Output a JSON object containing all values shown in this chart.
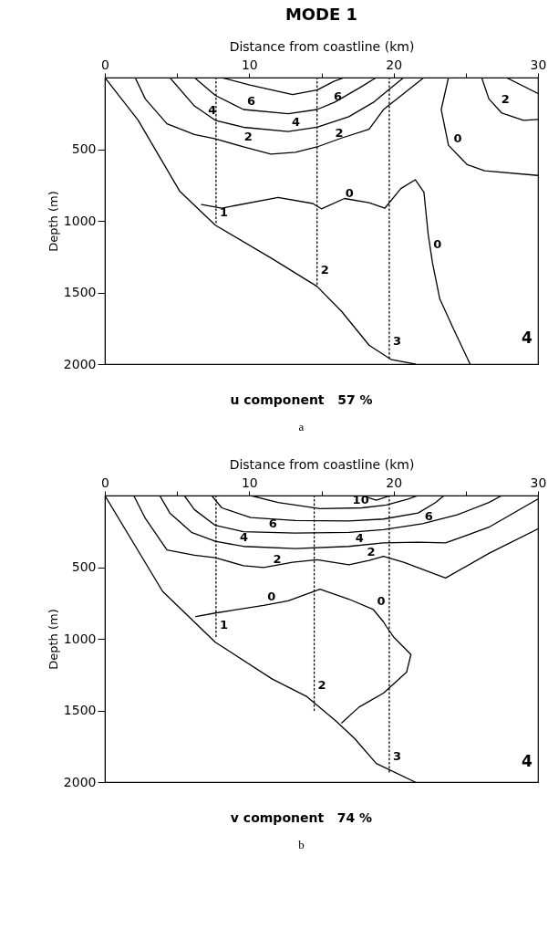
{
  "chart_data": [
    {
      "type": "line",
      "title": "MODE 1",
      "xlabel": "Distance from coastline (km)",
      "ylabel": "Depth (m)",
      "xlim": [
        0,
        30
      ],
      "xticks": [
        0,
        {
          "value": 5,
          "label": null
        },
        10,
        {
          "value": 15,
          "label": null
        },
        20,
        {
          "value": 25,
          "label": null
        },
        30
      ],
      "ylim": [
        2000,
        0
      ],
      "yticks": [
        500,
        1000,
        1500,
        2000
      ],
      "series": [
        {
          "color": "#000000",
          "x": [
            0,
            2.3,
            5.2,
            7.65,
            11.5,
            14.7,
            16.4,
            18.3,
            19.8,
            21.5
          ],
          "values": [
            0,
            297,
            795,
            1030,
            1259,
            1458,
            1632,
            1868,
            1967,
            2000
          ]
        },
        {
          "color": "#000000",
          "x": [
            8.1,
            10.1,
            13.0,
            14.7,
            15.9,
            16.6
          ],
          "values": [
            0,
            54,
            119,
            87,
            25,
            0
          ]
        },
        {
          "color": "#000000",
          "x": [
            6.2,
            7.65,
            9.6,
            12.7,
            14.7,
            15.9,
            17.6,
            18.8
          ],
          "values": [
            0,
            124,
            223,
            253,
            223,
            173,
            74,
            0
          ]
        },
        {
          "color": "#000000",
          "x": [
            4.5,
            6.2,
            7.65,
            9.6,
            12.7,
            14.7,
            16.9,
            18.6,
            19.8,
            20.7
          ],
          "values": [
            0,
            198,
            298,
            347,
            377,
            347,
            273,
            173,
            74,
            0
          ]
        },
        {
          "color": "#000000",
          "x": [
            2.1,
            2.8,
            4.3,
            6.2,
            7.65,
            9.6,
            11.5,
            13.2,
            14.7,
            16.4,
            18.3,
            19.3,
            20.7,
            22.1
          ],
          "values": [
            0,
            149,
            322,
            397,
            427,
            484,
            534,
            521,
            484,
            422,
            360,
            223,
            111,
            0
          ]
        },
        {
          "color": "#000000",
          "x": [
            23.8,
            23.3,
            23.8,
            25.1,
            26.3,
            30
          ],
          "values": [
            0,
            223,
            472,
            608,
            650,
            683
          ]
        },
        {
          "color": "#000000",
          "x": [
            26.1,
            26.6,
            27.5,
            29.0,
            30
          ],
          "values": [
            0,
            149,
            248,
            298,
            292
          ]
        },
        {
          "color": "#000000",
          "x": [
            27.8,
            30
          ],
          "values": [
            0,
            111
          ]
        },
        {
          "color": "#000000",
          "x": [
            6.7,
            8.1,
            12.0,
            14.4,
            15.0,
            16.6,
            18.3,
            19.4,
            20.5,
            21.5,
            22.1,
            22.4,
            22.7,
            23.2,
            24.1,
            25.3
          ],
          "values": [
            886,
            911,
            837,
            879,
            916,
            844,
            874,
            911,
            775,
            713,
            800,
            1098,
            1297,
            1545,
            1744,
            2000
          ]
        },
        {
          "color": "#000000",
          "line_style": "dotted",
          "x": [
            7.7,
            7.7
          ],
          "values": [
            0,
            1030
          ]
        },
        {
          "color": "#000000",
          "line_style": "dotted",
          "x": [
            14.7,
            14.7
          ],
          "values": [
            0,
            1458
          ]
        },
        {
          "color": "#000000",
          "line_style": "dotted",
          "x": [
            19.7,
            19.7
          ],
          "values": [
            0,
            1960
          ]
        }
      ],
      "annotations": [
        {
          "text": "6",
          "x": 9.6,
          "y": 223
        },
        {
          "text": "6",
          "x": 15.6,
          "y": 190
        },
        {
          "text": "4",
          "x": 6.9,
          "y": 285
        },
        {
          "text": "4",
          "x": 12.7,
          "y": 370
        },
        {
          "text": "2",
          "x": 9.4,
          "y": 472
        },
        {
          "text": "2",
          "x": 15.7,
          "y": 447
        },
        {
          "text": "0",
          "x": 23.9,
          "y": 485
        },
        {
          "text": "2",
          "x": 27.2,
          "y": 211
        },
        {
          "text": "0",
          "x": 16.4,
          "y": 869
        },
        {
          "text": "0",
          "x": 22.5,
          "y": 1222
        },
        {
          "text": "1",
          "x": 7.7,
          "y": 1000
        },
        {
          "text": "2",
          "x": 14.7,
          "y": 1400
        },
        {
          "text": "3",
          "x": 19.7,
          "y": 1900
        },
        "4",
        "u component   57 %",
        "a"
      ]
    },
    {
      "type": "line",
      "xlabel": "Distance from coastline (km)",
      "ylabel": "Depth (m)",
      "xlim": [
        0,
        30
      ],
      "xticks": [
        0,
        {
          "value": 5,
          "label": null
        },
        10,
        {
          "value": 15,
          "label": null
        },
        20,
        {
          "value": 25,
          "label": null
        },
        30
      ],
      "ylim": [
        2000,
        0
      ],
      "yticks": [
        500,
        1000,
        1500,
        2000
      ],
      "series": [
        {
          "color": "#000000",
          "x": [
            0,
            4.0,
            7.65,
            11.6,
            14.0,
            16.0,
            17.3,
            18.8,
            21.5
          ],
          "values": [
            0,
            669,
            1024,
            1281,
            1404,
            1573,
            1696,
            1870,
            2000
          ]
        },
        {
          "color": "#000000",
          "x": [
            10.1,
            12.0,
            14.9,
            17.8,
            19.5,
            21.0,
            21.7
          ],
          "values": [
            0,
            49,
            91,
            86,
            66,
            24,
            0
          ]
        },
        {
          "color": "#000000",
          "x": [
            17.8,
            18.8,
            19.8
          ],
          "values": [
            0,
            32,
            0
          ]
        },
        {
          "color": "#000000",
          "x": [
            7.4,
            8.1,
            10.1,
            13.2,
            16.9,
            19.3,
            21.7,
            22.9,
            23.5
          ],
          "values": [
            0,
            86,
            154,
            174,
            178,
            164,
            122,
            49,
            0
          ]
        },
        {
          "color": "#000000",
          "x": [
            5.5,
            6.2,
            7.65,
            9.6,
            13.2,
            16.9,
            19.3,
            22.0,
            24.4,
            26.6,
            27.5
          ],
          "values": [
            0,
            98,
            208,
            252,
            262,
            257,
            238,
            196,
            135,
            49,
            0
          ]
        },
        {
          "color": "#000000",
          "x": [
            3.8,
            4.5,
            6.0,
            7.65,
            9.6,
            13.2,
            16.9,
            19.3,
            21.7,
            23.6,
            26.6,
            30
          ],
          "values": [
            0,
            122,
            257,
            319,
            355,
            370,
            355,
            331,
            326,
            331,
            221,
            24
          ]
        },
        {
          "color": "#000000",
          "x": [
            2.0,
            2.8,
            4.3,
            6.2,
            7.65,
            9.6,
            11.0,
            13.0,
            14.7,
            16.9,
            18.3,
            19.3,
            20.7,
            23.6,
            26.6,
            30
          ],
          "values": [
            0,
            159,
            380,
            416,
            434,
            490,
            502,
            466,
            448,
            483,
            453,
            424,
            466,
            576,
            404,
            233
          ]
        },
        {
          "color": "#000000",
          "x": [
            6.3,
            7.65,
            11.0,
            12.7,
            14.9,
            16.9,
            18.6,
            19.3,
            19.5,
            20.0,
            21.2,
            20.9,
            19.3,
            17.6,
            16.4
          ],
          "values": [
            845,
            820,
            767,
            735,
            654,
            723,
            796,
            882,
            914,
            987,
            1110,
            1233,
            1379,
            1477,
            1587
          ]
        },
        {
          "color": "#000000",
          "line_style": "dotted",
          "x": [
            7.7,
            7.7
          ],
          "values": [
            0,
            990
          ]
        },
        {
          "color": "#000000",
          "line_style": "dotted",
          "x": [
            14.5,
            14.5
          ],
          "values": [
            0,
            1500
          ]
        },
        {
          "color": "#000000",
          "line_style": "dotted",
          "x": [
            19.7,
            19.7
          ],
          "values": [
            0,
            1930
          ]
        }
      ],
      "annotations": [
        {
          "text": "10",
          "x": 16.9,
          "y": 86
        },
        {
          "text": "6",
          "x": 11.1,
          "y": 257
        },
        {
          "text": "6",
          "x": 21.9,
          "y": 202
        },
        {
          "text": "4",
          "x": 9.1,
          "y": 350
        },
        {
          "text": "4",
          "x": 17.1,
          "y": 355
        },
        {
          "text": "2",
          "x": 11.4,
          "y": 502
        },
        {
          "text": "2",
          "x": 17.9,
          "y": 453
        },
        {
          "text": "0",
          "x": 11.0,
          "y": 767
        },
        {
          "text": "0",
          "x": 18.6,
          "y": 796
        },
        {
          "text": "1",
          "x": 7.7,
          "y": 960
        },
        {
          "text": "2",
          "x": 14.5,
          "y": 1380
        },
        {
          "text": "3",
          "x": 19.7,
          "y": 1880
        },
        "4",
        "v component   74 %",
        "b"
      ]
    }
  ]
}
